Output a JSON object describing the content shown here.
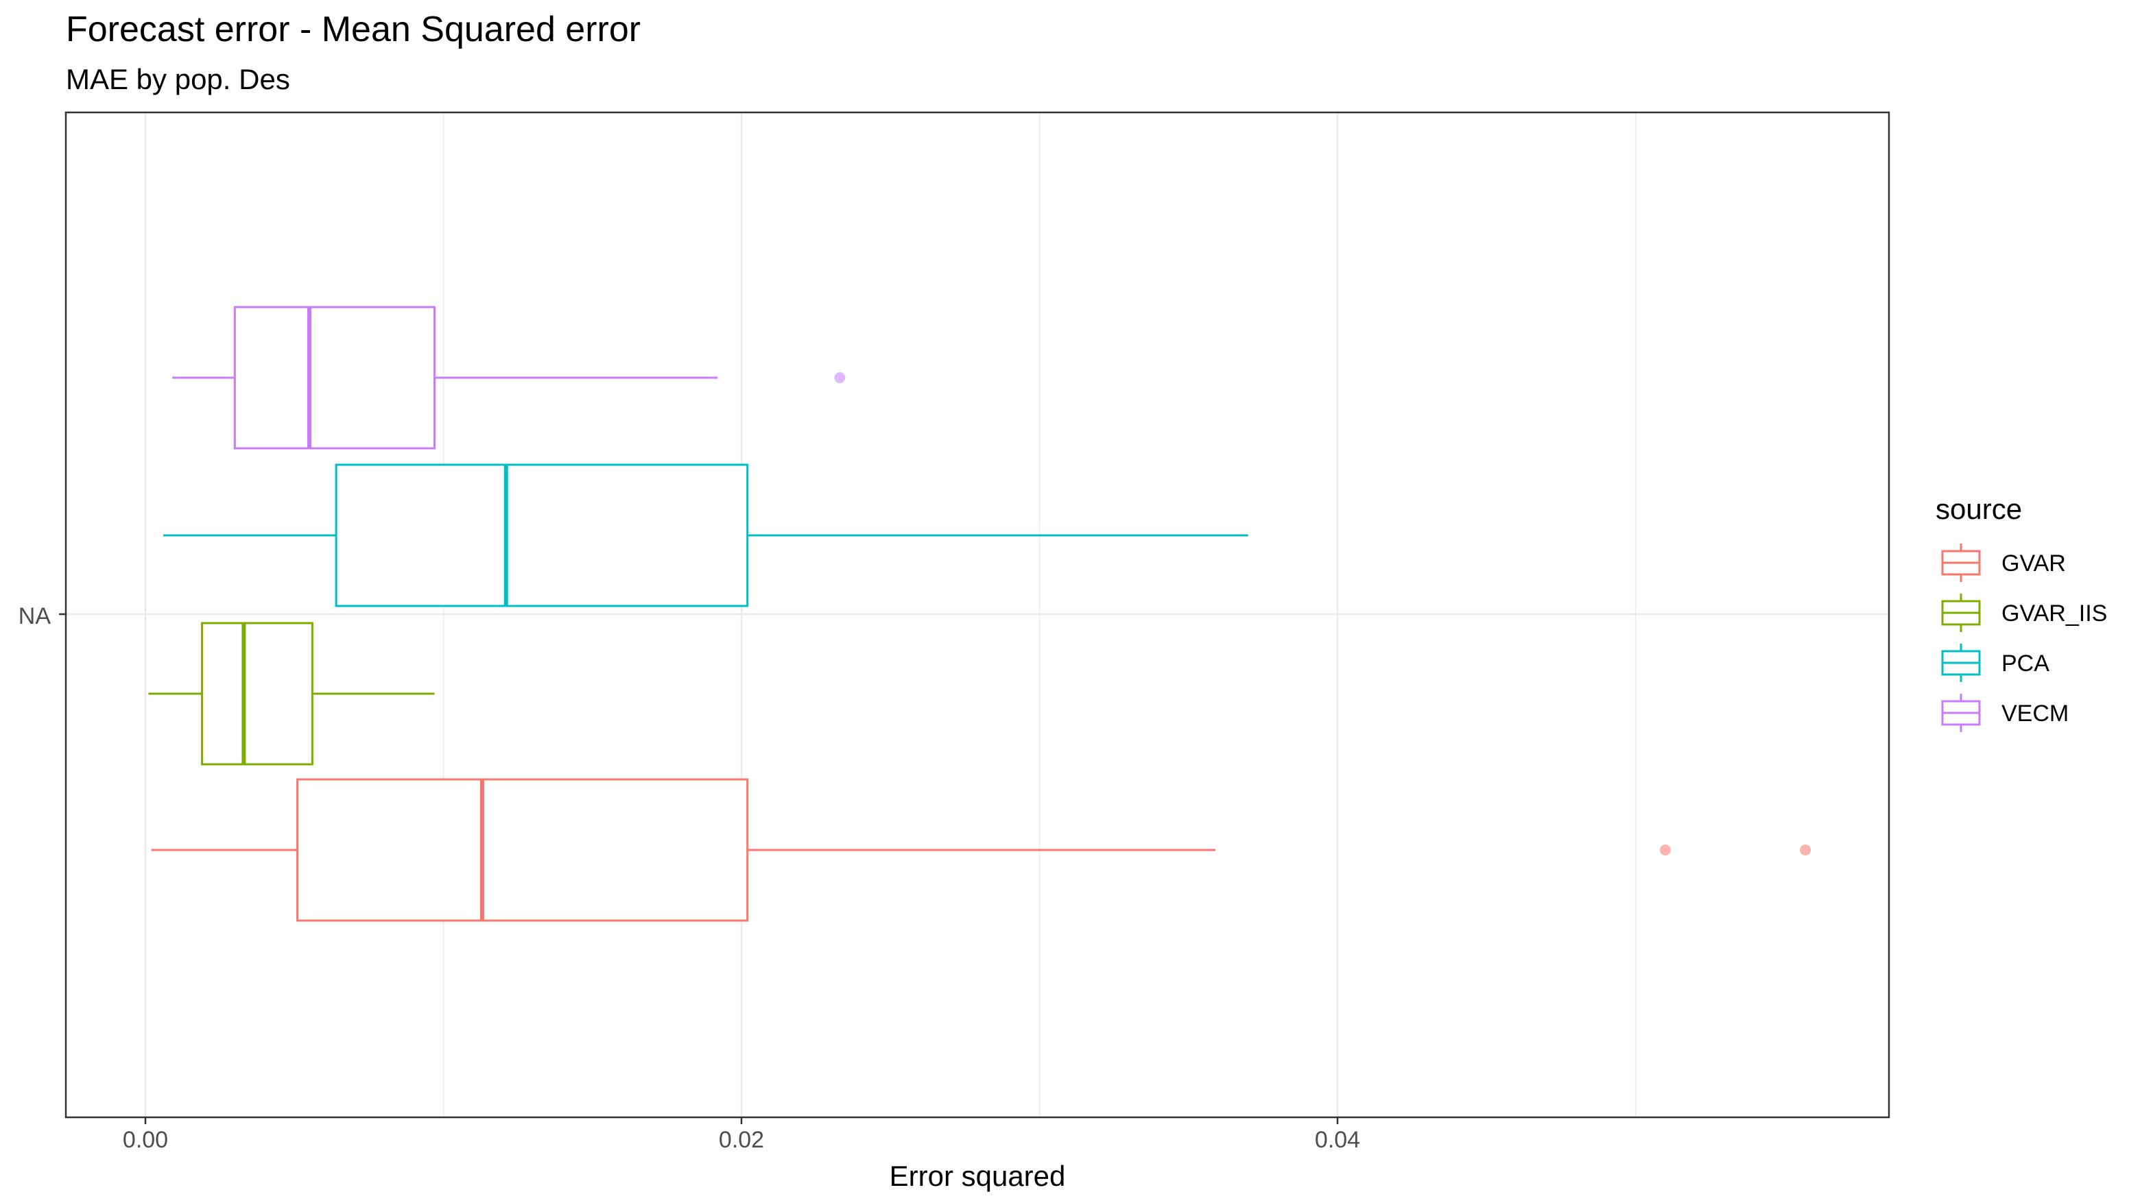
{
  "chart_data": {
    "type": "boxplot",
    "orientation": "horizontal",
    "title": "Forecast error - Mean Squared error",
    "subtitle": "MAE by pop. Des",
    "xlabel": "Error squared",
    "ylabel": "",
    "xlim": [
      -0.0026,
      0.0584
    ],
    "x_ticks": [
      "0.00",
      "0.02",
      "0.04"
    ],
    "x_tick_values": [
      0,
      0.02,
      0.04
    ],
    "y_categories": [
      "NA"
    ],
    "grid": true,
    "legend": {
      "title": "source",
      "position": "right"
    },
    "series": [
      {
        "name": "GVAR",
        "color": "#F8766D",
        "min": 0.0002,
        "q1": 0.0051,
        "median": 0.0113,
        "q3": 0.0202,
        "max": 0.0359,
        "outliers": [
          0.051,
          0.0557
        ]
      },
      {
        "name": "GVAR_IIS",
        "color": "#7CAE00",
        "min": 0.0001,
        "q1": 0.0019,
        "median": 0.0033,
        "q3": 0.0056,
        "max": 0.0097,
        "outliers": []
      },
      {
        "name": "PCA",
        "color": "#00BFC4",
        "min": 0.0006,
        "q1": 0.0064,
        "median": 0.0121,
        "q3": 0.0202,
        "max": 0.037,
        "outliers": []
      },
      {
        "name": "VECM",
        "color": "#C77CFF",
        "min": 0.0009,
        "q1": 0.003,
        "median": 0.0055,
        "q3": 0.0097,
        "max": 0.0192,
        "outliers": [
          0.0233
        ]
      }
    ]
  }
}
